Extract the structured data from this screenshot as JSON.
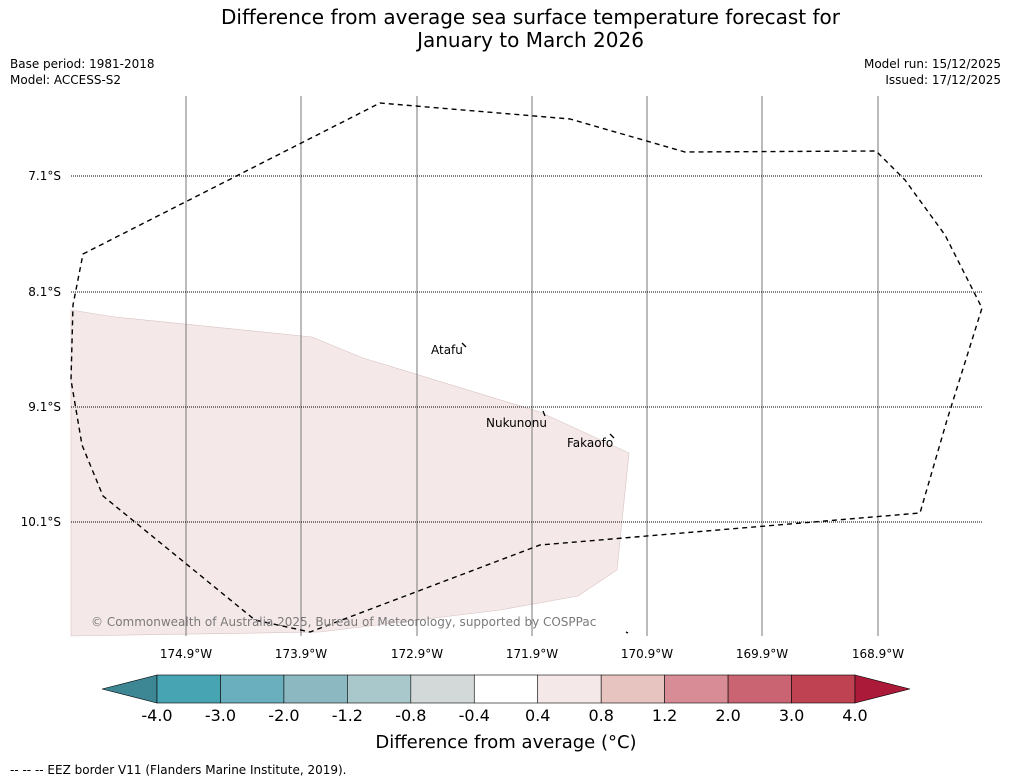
{
  "title": {
    "line1": "Difference from average sea surface temperature forecast for",
    "line2": "January to March 2026"
  },
  "meta_left": {
    "base_period": "Base period: 1981-2018",
    "model": "Model: ACCESS-S2"
  },
  "meta_right": {
    "model_run": "Model run: 15/12/2025",
    "issued": "Issued: 17/12/2025"
  },
  "map": {
    "lat_labels": [
      "7.1°S",
      "8.1°S",
      "9.1°S",
      "10.1°S"
    ],
    "lon_labels": [
      "174.9°W",
      "173.9°W",
      "172.9°W",
      "171.9°W",
      "170.9°W",
      "169.9°W",
      "168.9°W"
    ],
    "places": [
      "Atafu",
      "Nukunonu",
      "Fakaofo"
    ],
    "copyright": "© Commonwealth of Australia 2025, Bureau of Meteorology, supported by COSPPac",
    "anomaly_region_bin": "0.4 to 0.8"
  },
  "colorbar": {
    "ticks": [
      "-4.0",
      "-3.0",
      "-2.0",
      "-1.2",
      "-0.8",
      "-0.4",
      "0.4",
      "0.8",
      "1.2",
      "2.0",
      "3.0",
      "4.0"
    ],
    "colors": [
      "#3d8794",
      "#46a4b3",
      "#6aafbd",
      "#8cb8c2",
      "#a9c8cc",
      "#d3d8d8",
      "#ffffff",
      "#f5e8e8",
      "#e8c4c1",
      "#d88c95",
      "#cb6472",
      "#be4252",
      "#ac1a3a"
    ],
    "label": "Difference from average (°C)"
  },
  "footnote": "--  --  -- EEZ border V11 (Flanders Marine Institute, 2019)."
}
